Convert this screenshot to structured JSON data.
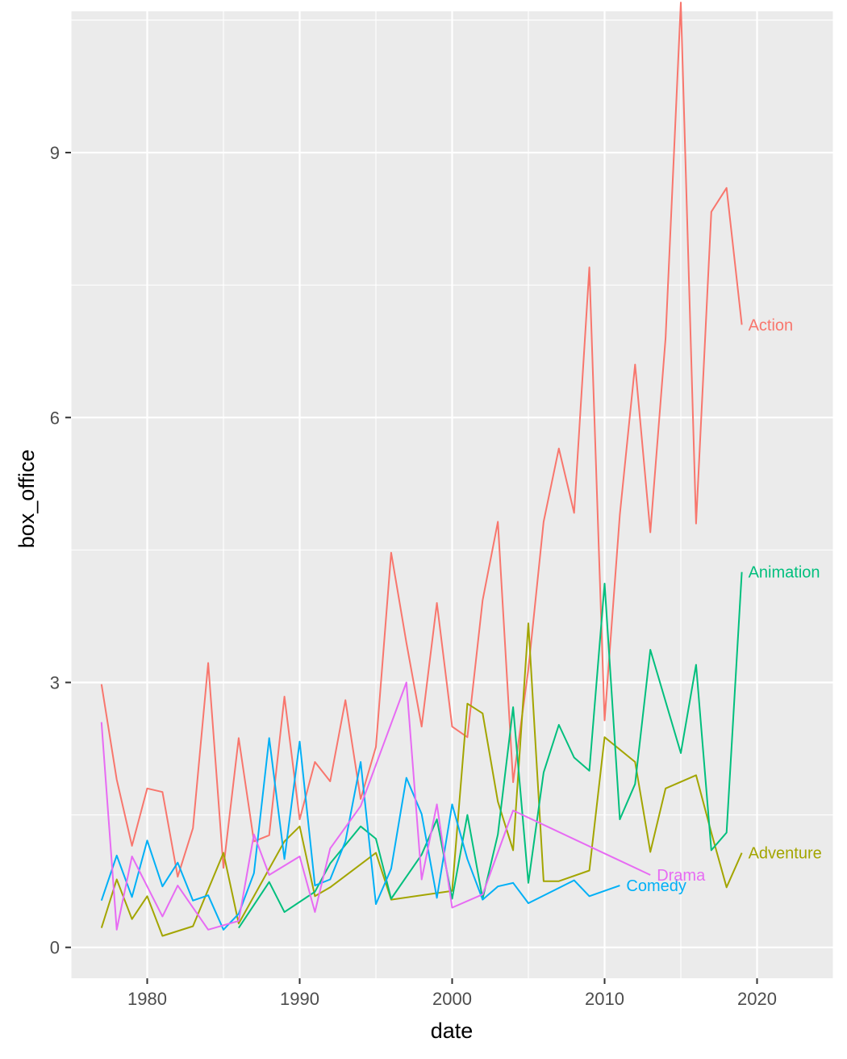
{
  "chart_data": {
    "type": "line",
    "xlabel": "date",
    "ylabel": "box_office",
    "xlim": [
      1975,
      2025
    ],
    "ylim": [
      -0.35,
      10.6
    ],
    "x_ticks": [
      1980,
      1990,
      2000,
      2010,
      2020
    ],
    "y_ticks": [
      0,
      3,
      6,
      9
    ],
    "grid": true,
    "legend": "direct labels at line ends",
    "series": [
      {
        "name": "Action",
        "color": "#F8766D",
        "points": [
          [
            1977,
            2.98
          ],
          [
            1978,
            1.9
          ],
          [
            1979,
            1.15
          ],
          [
            1980,
            1.8
          ],
          [
            1981,
            1.76
          ],
          [
            1982,
            0.8
          ],
          [
            1983,
            1.35
          ],
          [
            1984,
            3.22
          ],
          [
            1985,
            0.9
          ],
          [
            1986,
            2.37
          ],
          [
            1987,
            1.2
          ],
          [
            1988,
            1.27
          ],
          [
            1989,
            2.84
          ],
          [
            1990,
            1.45
          ],
          [
            1991,
            2.1
          ],
          [
            1992,
            1.88
          ],
          [
            1993,
            2.8
          ],
          [
            1994,
            1.68
          ],
          [
            1995,
            2.27
          ],
          [
            1996,
            4.47
          ],
          [
            1997,
            3.45
          ],
          [
            1998,
            2.5
          ],
          [
            1999,
            3.9
          ],
          [
            2000,
            2.5
          ],
          [
            2001,
            2.38
          ],
          [
            2002,
            3.93
          ],
          [
            2003,
            4.82
          ],
          [
            2004,
            1.87
          ],
          [
            2005,
            3.15
          ],
          [
            2006,
            4.82
          ],
          [
            2007,
            5.65
          ],
          [
            2008,
            4.92
          ],
          [
            2009,
            7.7
          ],
          [
            2010,
            2.57
          ],
          [
            2011,
            4.9
          ],
          [
            2012,
            6.6
          ],
          [
            2013,
            4.7
          ],
          [
            2014,
            6.9
          ],
          [
            2015,
            10.7
          ],
          [
            2016,
            4.8
          ],
          [
            2017,
            8.33
          ],
          [
            2018,
            8.6
          ],
          [
            2019,
            7.05
          ]
        ]
      },
      {
        "name": "Adventure",
        "color": "#A3A500",
        "points": [
          [
            1977,
            0.22
          ],
          [
            1978,
            0.77
          ],
          [
            1979,
            0.32
          ],
          [
            1980,
            0.58
          ],
          [
            1981,
            0.13
          ],
          [
            1983,
            0.24
          ],
          [
            1985,
            1.07
          ],
          [
            1986,
            0.27
          ],
          [
            1989,
            1.2
          ],
          [
            1990,
            1.37
          ],
          [
            1991,
            0.58
          ],
          [
            1992,
            0.68
          ],
          [
            1995,
            1.07
          ],
          [
            1996,
            0.54
          ],
          [
            2000,
            0.64
          ],
          [
            2001,
            2.76
          ],
          [
            2002,
            2.65
          ],
          [
            2003,
            1.65
          ],
          [
            2004,
            1.1
          ],
          [
            2005,
            3.67
          ],
          [
            2006,
            0.75
          ],
          [
            2007,
            0.75
          ],
          [
            2009,
            0.87
          ],
          [
            2010,
            2.38
          ],
          [
            2012,
            2.1
          ],
          [
            2013,
            1.08
          ],
          [
            2014,
            1.8
          ],
          [
            2016,
            1.95
          ],
          [
            2017,
            1.3
          ],
          [
            2018,
            0.68
          ],
          [
            2019,
            1.07
          ]
        ]
      },
      {
        "name": "Animation",
        "color": "#00BF7D",
        "points": [
          [
            1986,
            0.22
          ],
          [
            1988,
            0.74
          ],
          [
            1989,
            0.4
          ],
          [
            1991,
            0.63
          ],
          [
            1992,
            0.95
          ],
          [
            1994,
            1.37
          ],
          [
            1995,
            1.23
          ],
          [
            1996,
            0.55
          ],
          [
            1998,
            1.05
          ],
          [
            1999,
            1.45
          ],
          [
            2000,
            0.55
          ],
          [
            2001,
            1.5
          ],
          [
            2002,
            0.55
          ],
          [
            2003,
            1.28
          ],
          [
            2004,
            2.72
          ],
          [
            2005,
            0.73
          ],
          [
            2006,
            1.98
          ],
          [
            2007,
            2.52
          ],
          [
            2008,
            2.15
          ],
          [
            2009,
            2.0
          ],
          [
            2010,
            4.12
          ],
          [
            2011,
            1.45
          ],
          [
            2012,
            1.85
          ],
          [
            2013,
            3.37
          ],
          [
            2015,
            2.2
          ],
          [
            2016,
            3.2
          ],
          [
            2017,
            1.1
          ],
          [
            2018,
            1.3
          ],
          [
            2019,
            4.25
          ]
        ]
      },
      {
        "name": "Comedy",
        "color": "#00B0F6",
        "points": [
          [
            1977,
            0.53
          ],
          [
            1978,
            1.04
          ],
          [
            1979,
            0.57
          ],
          [
            1980,
            1.21
          ],
          [
            1981,
            0.69
          ],
          [
            1982,
            0.96
          ],
          [
            1983,
            0.53
          ],
          [
            1984,
            0.59
          ],
          [
            1985,
            0.2
          ],
          [
            1986,
            0.38
          ],
          [
            1987,
            0.84
          ],
          [
            1988,
            2.37
          ],
          [
            1989,
            1.0
          ],
          [
            1990,
            2.33
          ],
          [
            1991,
            0.7
          ],
          [
            1992,
            0.77
          ],
          [
            1993,
            1.2
          ],
          [
            1994,
            2.1
          ],
          [
            1995,
            0.49
          ],
          [
            1996,
            0.89
          ],
          [
            1997,
            1.92
          ],
          [
            1998,
            1.51
          ],
          [
            1999,
            0.56
          ],
          [
            2000,
            1.62
          ],
          [
            2001,
            1.0
          ],
          [
            2002,
            0.54
          ],
          [
            2003,
            0.69
          ],
          [
            2004,
            0.73
          ],
          [
            2005,
            0.5
          ],
          [
            2008,
            0.76
          ],
          [
            2009,
            0.58
          ],
          [
            2011,
            0.7
          ]
        ]
      },
      {
        "name": "Drama",
        "color": "#E76BF3",
        "points": [
          [
            1977,
            2.55
          ],
          [
            1978,
            0.2
          ],
          [
            1979,
            1.03
          ],
          [
            1981,
            0.35
          ],
          [
            1982,
            0.7
          ],
          [
            1984,
            0.2
          ],
          [
            1986,
            0.3
          ],
          [
            1987,
            1.28
          ],
          [
            1988,
            0.82
          ],
          [
            1990,
            1.03
          ],
          [
            1991,
            0.4
          ],
          [
            1992,
            1.12
          ],
          [
            1994,
            1.6
          ],
          [
            1997,
            3.0
          ],
          [
            1998,
            0.77
          ],
          [
            1999,
            1.62
          ],
          [
            2000,
            0.45
          ],
          [
            2002,
            0.6
          ],
          [
            2004,
            1.55
          ],
          [
            2013,
            0.82
          ]
        ]
      }
    ]
  }
}
